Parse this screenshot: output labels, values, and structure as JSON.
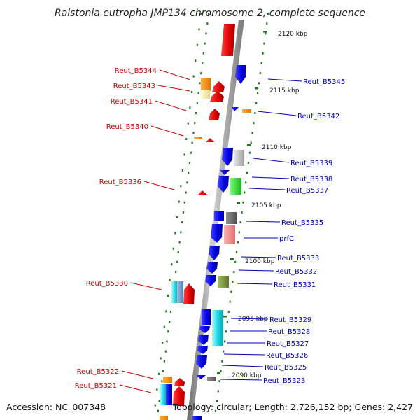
{
  "title": "Ralstonia eutropha JMP134 chromosome 2, complete sequence",
  "footer": {
    "accession": "Accession: NC_007348",
    "topology": "Topology: circular; Length: 2,726,152 bp; Genes: 2,427"
  },
  "colors": {
    "left_label": "#cc0000",
    "right_label": "#0000bb",
    "tick": "#1a7a1a",
    "backbone": "#8c8c8c"
  },
  "scale_ticks": [
    "2120 kbp",
    "2115 kbp",
    "2110 kbp",
    "2105 kbp",
    "2100 kbp",
    "2095 kbp",
    "2090 kbp"
  ],
  "labels_left": [
    "Reut_B5344",
    "Reut_B5343",
    "Reut_B5341",
    "Reut_B5340",
    "Reut_B5336",
    "Reut_B5330",
    "Reut_B5322",
    "Reut_B5321"
  ],
  "labels_right": [
    "Reut_B5345",
    "Reut_B5342",
    "Reut_B5339",
    "Reut_B5338",
    "Reut_B5337",
    "Reut_B5335",
    "prfC",
    "Reut_B5333",
    "Reut_B5332",
    "Reut_B5331",
    "Reut_B5329",
    "Reut_B5328",
    "Reut_B5327",
    "Reut_B5326",
    "Reut_B5325",
    "Reut_B5323"
  ]
}
